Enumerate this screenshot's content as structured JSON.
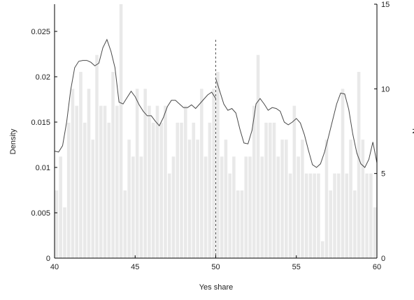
{
  "chart_data": {
    "type": "bar",
    "xlabel": "Yes share",
    "ylabel_left": "Density",
    "ylabel_right": "N",
    "xlim": [
      40,
      60
    ],
    "ylim_left": [
      0,
      0.028
    ],
    "ylim_right": [
      0,
      15
    ],
    "x_ticks": [
      "40",
      "45",
      "50",
      "55",
      "60"
    ],
    "y_left_ticks": [
      "0",
      "0.005",
      "0.01",
      "0.015",
      "0.02",
      "0.025"
    ],
    "y_right_ticks": [
      "0",
      "5",
      "10",
      "15"
    ],
    "bin_width": 0.25,
    "bars": {
      "name": "N",
      "bin_start": [
        40.0,
        40.25,
        40.5,
        40.75,
        41.0,
        41.25,
        41.5,
        41.75,
        42.0,
        42.25,
        42.5,
        42.75,
        43.0,
        43.25,
        43.5,
        43.75,
        44.0,
        44.25,
        44.5,
        44.75,
        45.0,
        45.25,
        45.5,
        45.75,
        46.0,
        46.25,
        46.5,
        46.75,
        47.0,
        47.25,
        47.5,
        47.75,
        48.0,
        48.25,
        48.5,
        48.75,
        49.0,
        49.25,
        49.5,
        49.75,
        50.0,
        50.25,
        50.5,
        50.75,
        51.0,
        51.25,
        51.5,
        51.75,
        52.0,
        52.25,
        52.5,
        52.75,
        53.0,
        53.25,
        53.5,
        53.75,
        54.0,
        54.25,
        54.5,
        54.75,
        55.0,
        55.25,
        55.5,
        55.75,
        56.0,
        56.25,
        56.5,
        56.75,
        57.0,
        57.25,
        57.5,
        57.75,
        58.0,
        58.25,
        58.5,
        58.75,
        59.0,
        59.25,
        59.5,
        59.75
      ],
      "counts": [
        4,
        6,
        3,
        8,
        10,
        9,
        11,
        8,
        10,
        7,
        12,
        9,
        9,
        8,
        11,
        9,
        15,
        4,
        7,
        6,
        10,
        6,
        10,
        9,
        8,
        9,
        8,
        9,
        5,
        6,
        8,
        8,
        9,
        7,
        8,
        7,
        10,
        6,
        8,
        10,
        11,
        6,
        7,
        5,
        6,
        4,
        4,
        6,
        6,
        9,
        12,
        6,
        8,
        8,
        8,
        6,
        7,
        7,
        5,
        9,
        6,
        7,
        5,
        5,
        5,
        5,
        1,
        7,
        4,
        5,
        5,
        10,
        5,
        7,
        4,
        11,
        7,
        5,
        5,
        3
      ]
    },
    "density_curve": {
      "name": "Density",
      "segments": [
        {
          "x": [
            40.0,
            40.25,
            40.5,
            40.75,
            41.0,
            41.25,
            41.5,
            41.75,
            42.0,
            42.25,
            42.5,
            42.75,
            43.0,
            43.25,
            43.5,
            43.75,
            44.0,
            44.25,
            44.5,
            44.75,
            45.0,
            45.25,
            45.5,
            45.75,
            46.0,
            46.25,
            46.5,
            46.75,
            47.0,
            47.25,
            47.5,
            47.75,
            48.0,
            48.25,
            48.5,
            48.75,
            49.0,
            49.25,
            49.5,
            49.75,
            50.0
          ],
          "y": [
            0.0118,
            0.0117,
            0.0124,
            0.015,
            0.0185,
            0.021,
            0.0217,
            0.0218,
            0.0218,
            0.0216,
            0.0212,
            0.0215,
            0.0232,
            0.0241,
            0.0228,
            0.021,
            0.0172,
            0.017,
            0.0177,
            0.0184,
            0.0178,
            0.0169,
            0.0162,
            0.0157,
            0.0157,
            0.0151,
            0.0146,
            0.0155,
            0.0167,
            0.0174,
            0.0174,
            0.017,
            0.0166,
            0.0166,
            0.0169,
            0.0165,
            0.017,
            0.0175,
            0.018,
            0.0183,
            0.0176
          ]
        },
        {
          "x": [
            50.0,
            50.25,
            50.5,
            50.75,
            51.0,
            51.25,
            51.5,
            51.75,
            52.0,
            52.25,
            52.5,
            52.75,
            53.0,
            53.25,
            53.5,
            53.75,
            54.0,
            54.25,
            54.5,
            54.75,
            55.0,
            55.25,
            55.5,
            55.75,
            56.0,
            56.25,
            56.5,
            56.75,
            57.0,
            57.25,
            57.5,
            57.75,
            58.0,
            58.25,
            58.5,
            58.75,
            59.0,
            59.25,
            59.5,
            59.75,
            60.0
          ],
          "y": [
            0.0198,
            0.0184,
            0.017,
            0.0163,
            0.0165,
            0.016,
            0.0142,
            0.0127,
            0.0126,
            0.0141,
            0.017,
            0.0176,
            0.017,
            0.0163,
            0.0166,
            0.0165,
            0.0162,
            0.015,
            0.0147,
            0.015,
            0.0154,
            0.0149,
            0.0136,
            0.0119,
            0.0103,
            0.01,
            0.0104,
            0.0117,
            0.0134,
            0.0152,
            0.017,
            0.0182,
            0.0181,
            0.0164,
            0.0137,
            0.0116,
            0.0104,
            0.01,
            0.0109,
            0.0128,
            0.0105
          ]
        }
      ]
    },
    "threshold_x": 50,
    "grid": false,
    "colors": {
      "bar_fill": "#e9e9e9",
      "curve": "#4a4a4a",
      "axis": "#000000",
      "threshold": "#555555"
    }
  }
}
